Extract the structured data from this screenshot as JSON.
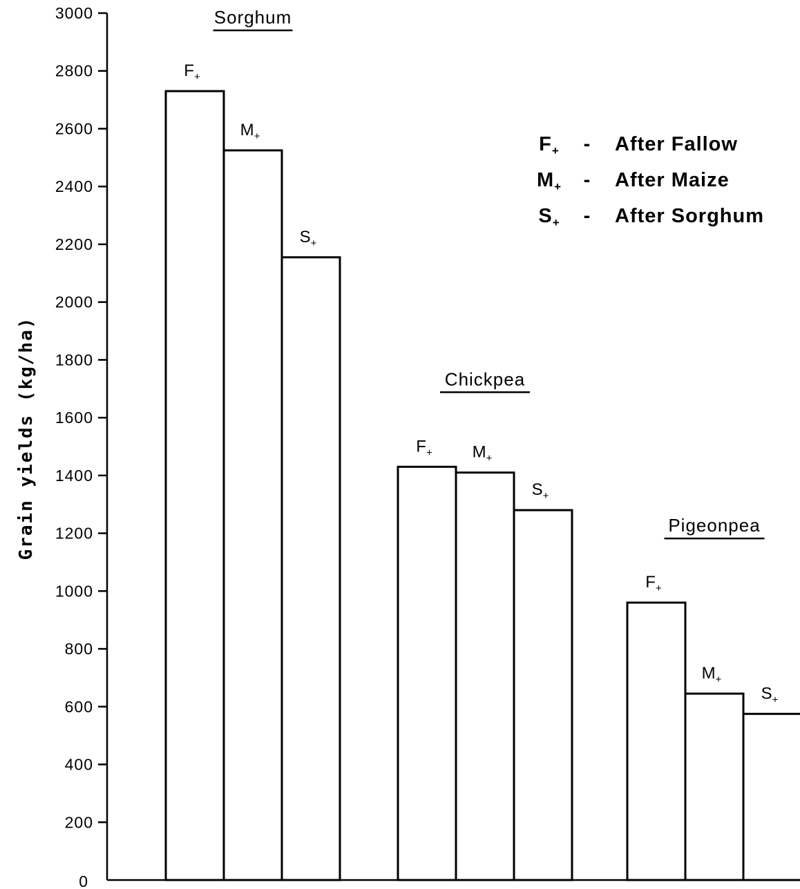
{
  "chart_data": {
    "type": "bar",
    "ylabel": "Grain yields (kg/ha)",
    "xlabel": "",
    "ylim": [
      0,
      3000
    ],
    "yticks": [
      0,
      200,
      400,
      600,
      800,
      1000,
      1200,
      1400,
      1600,
      1800,
      2000,
      2200,
      2400,
      2600,
      2800,
      3000
    ],
    "grid": false,
    "legend_position": "top-right",
    "groups": [
      {
        "name": "Sorghum",
        "bars": [
          {
            "label": "F",
            "sub": "+",
            "value": 2730
          },
          {
            "label": "M",
            "sub": "+",
            "value": 2525
          },
          {
            "label": "S",
            "sub": "+",
            "value": 2155
          }
        ]
      },
      {
        "name": "Chickpea",
        "bars": [
          {
            "label": "F",
            "sub": "+",
            "value": 1430
          },
          {
            "label": "M",
            "sub": "+",
            "value": 1410
          },
          {
            "label": "S",
            "sub": "+",
            "value": 1280
          }
        ]
      },
      {
        "name": "Pigeonpea",
        "bars": [
          {
            "label": "F",
            "sub": "+",
            "value": 960
          },
          {
            "label": "M",
            "sub": "+",
            "value": 645
          },
          {
            "label": "S",
            "sub": "+",
            "value": 575
          }
        ]
      }
    ],
    "legend": [
      {
        "symbol": "F",
        "sub": "+",
        "dash": "-",
        "text": "After  Fallow"
      },
      {
        "symbol": "M",
        "sub": "+",
        "dash": "-",
        "text": "After  Maize"
      },
      {
        "symbol": "S",
        "sub": "+",
        "dash": "-",
        "text": "After  Sorghum"
      }
    ]
  }
}
